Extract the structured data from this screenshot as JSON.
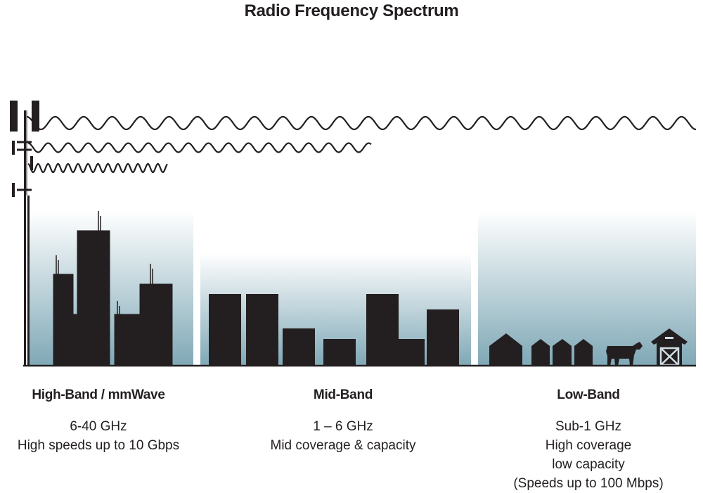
{
  "title": "Radio Frequency Spectrum",
  "colors": {
    "silhouette": "#231f20",
    "gradient_bottom": "#7fa8b6",
    "gradient_top": "#ffffff"
  },
  "bands": [
    {
      "name": "High-Band / mmWave",
      "lines": [
        "6-40 GHz",
        "High speeds up to 10 Gbps"
      ]
    },
    {
      "name": "Mid-Band",
      "lines": [
        "1 – 6 GHz",
        "Mid coverage & capacity"
      ]
    },
    {
      "name": "Low-Band",
      "lines": [
        "Sub-1 GHz",
        "High coverage",
        "low capacity",
        "(Speeds up to 100 Mbps)"
      ]
    }
  ],
  "icons": [
    "cell-tower-icon",
    "city-buildings-icon",
    "suburban-buildings-icon",
    "houses-icon",
    "cow-icon",
    "barn-icon"
  ]
}
